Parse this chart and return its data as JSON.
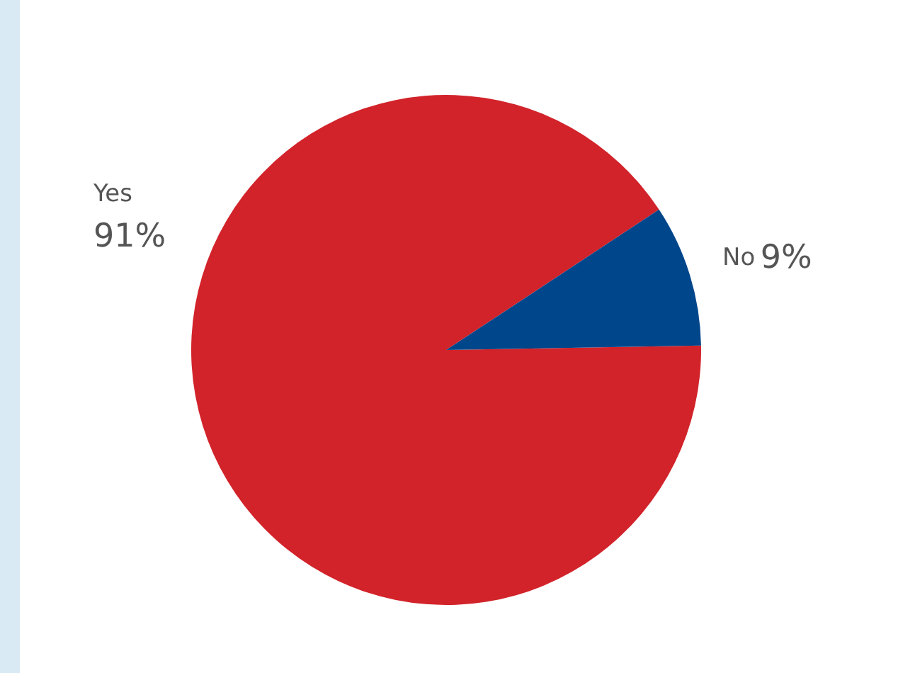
{
  "chart_data": {
    "type": "pie",
    "categories": [
      "Yes",
      "No"
    ],
    "values": [
      91,
      9
    ],
    "colors": [
      "#d2232a",
      "#00468b"
    ],
    "value_labels": [
      "91%",
      "9%"
    ],
    "legend": false
  }
}
